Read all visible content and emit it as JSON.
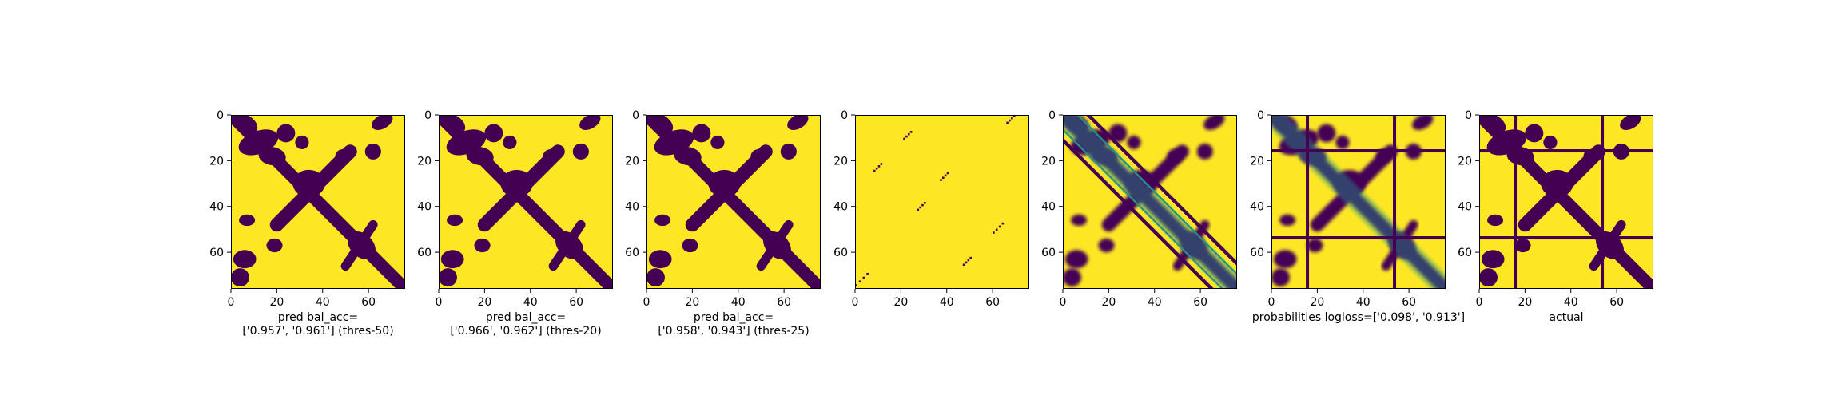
{
  "colors": {
    "low": "#440154",
    "mid": "#21918c",
    "high": "#fde725"
  },
  "chart_data": [
    {
      "type": "heatmap",
      "colormap": "viridis",
      "size": 76,
      "xticks": [
        0,
        20,
        40,
        60
      ],
      "yticks": [
        0,
        20,
        40,
        60
      ],
      "caption": [
        "pred bal_acc=",
        "['0.957', '0.961'] (thres-50)"
      ],
      "content": "binary predicted contact map",
      "values_description": "0 or 1 per residue pair"
    },
    {
      "type": "heatmap",
      "colormap": "viridis",
      "size": 76,
      "xticks": [
        0,
        20,
        40,
        60
      ],
      "yticks": [
        0,
        20,
        40,
        60
      ],
      "caption": [
        "pred bal_acc=",
        "['0.966', '0.962'] (thres-20)"
      ],
      "content": "binary predicted contact map",
      "values_description": "0 or 1 per residue pair"
    },
    {
      "type": "heatmap",
      "colormap": "viridis",
      "size": 76,
      "xticks": [
        0,
        20,
        40,
        60
      ],
      "yticks": [
        0,
        20,
        40,
        60
      ],
      "caption": [
        "pred bal_acc=",
        "['0.958', '0.943'] (thres-25)"
      ],
      "content": "binary predicted contact map",
      "values_description": "0 or 1 per residue pair"
    },
    {
      "type": "heatmap",
      "colormap": "viridis",
      "size": 76,
      "xticks": [
        0,
        20,
        40,
        60
      ],
      "yticks": [
        0,
        20,
        40,
        60
      ],
      "caption": [],
      "content": "mostly 1 with short diagonal runs of 0",
      "diagonal_segments": [
        [
          0,
          69,
          5,
          74
        ],
        [
          8,
          21,
          11,
          24
        ],
        [
          21,
          7,
          24,
          10
        ],
        [
          27,
          38,
          30,
          41
        ],
        [
          37,
          25,
          40,
          28
        ],
        [
          47,
          62,
          50,
          65
        ],
        [
          60,
          47,
          64,
          51
        ],
        [
          66,
          0,
          69,
          3
        ]
      ]
    },
    {
      "type": "heatmap",
      "colormap": "viridis",
      "size": 76,
      "xticks": [
        0,
        20,
        40,
        60
      ],
      "yticks": [
        0,
        20,
        40,
        60
      ],
      "caption": [],
      "content": "continuous probability map with striped main diagonal"
    },
    {
      "type": "heatmap",
      "colormap": "viridis",
      "size": 76,
      "xticks": [
        0,
        20,
        40,
        60
      ],
      "yticks": [
        0,
        20,
        40,
        60
      ],
      "caption": [
        "probabilities logloss=['0.098', '0.913']"
      ],
      "content": "probability map with masked rows/columns",
      "masked_rows": [
        15,
        53
      ],
      "masked_cols": [
        15,
        53
      ]
    },
    {
      "type": "heatmap",
      "colormap": "viridis",
      "size": 76,
      "xticks": [
        0,
        20,
        40,
        60
      ],
      "yticks": [
        0,
        20,
        40,
        60
      ],
      "caption": [
        "actual"
      ],
      "content": "ground-truth contact map with masked rows/columns",
      "masked_rows": [
        15,
        53
      ],
      "masked_cols": [
        15,
        53
      ]
    }
  ]
}
